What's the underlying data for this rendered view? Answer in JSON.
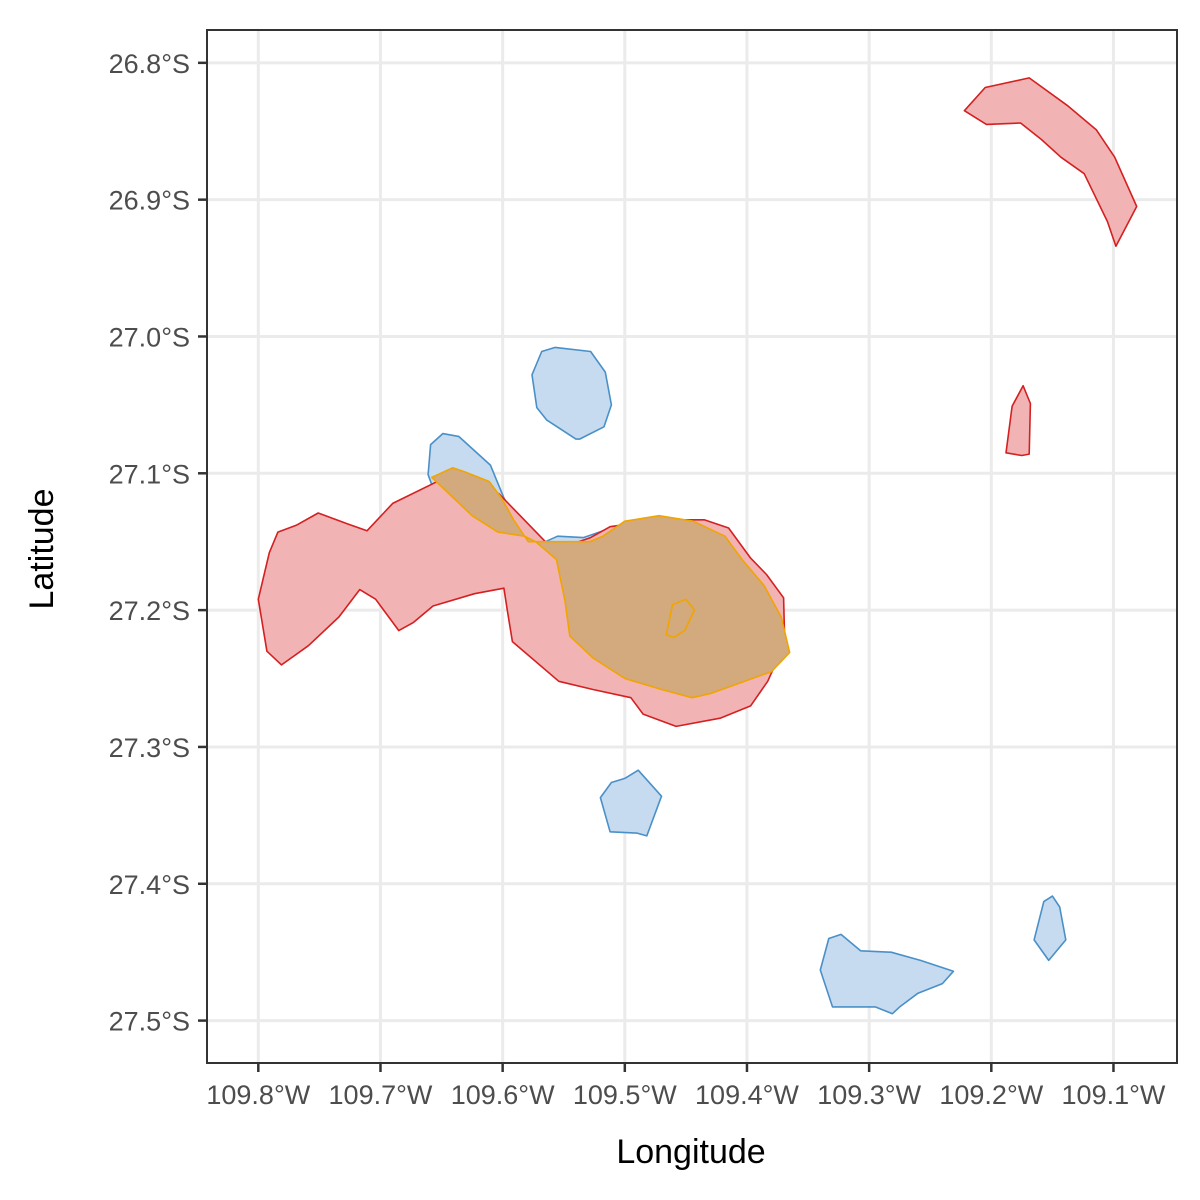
{
  "chart_data": {
    "type": "area",
    "xlabel": "Longitude",
    "ylabel": "Latitude",
    "xlim": [
      -109.842,
      -109.048
    ],
    "ylim": [
      -27.531,
      -26.776
    ],
    "grid": true,
    "legend": "none",
    "x_ticks": [
      {
        "value": -109.8,
        "label": "109.8°W"
      },
      {
        "value": -109.7,
        "label": "109.7°W"
      },
      {
        "value": -109.6,
        "label": "109.6°W"
      },
      {
        "value": -109.5,
        "label": "109.5°W"
      },
      {
        "value": -109.4,
        "label": "109.4°W"
      },
      {
        "value": -109.3,
        "label": "109.3°W"
      },
      {
        "value": -109.2,
        "label": "109.2°W"
      },
      {
        "value": -109.1,
        "label": "109.1°W"
      }
    ],
    "y_ticks": [
      {
        "value": -26.8,
        "label": "26.8°S"
      },
      {
        "value": -26.9,
        "label": "26.9°S"
      },
      {
        "value": -27.0,
        "label": "27.0°S"
      },
      {
        "value": -27.1,
        "label": "27.1°S"
      },
      {
        "value": -27.2,
        "label": "27.2°S"
      },
      {
        "value": -27.3,
        "label": "27.3°S"
      },
      {
        "value": -27.4,
        "label": "27.4°S"
      },
      {
        "value": -27.5,
        "label": "27.5°S"
      }
    ],
    "series": [
      {
        "fill": "#c6dbef",
        "stroke": "#4a90c8",
        "polygons": [
          [
            [
              -109.524,
              -27.157
            ],
            [
              -109.581,
              -27.148
            ],
            [
              -109.599,
              -27.118
            ],
            [
              -109.61,
              -27.094
            ],
            [
              -109.636,
              -27.073
            ],
            [
              -109.649,
              -27.071
            ],
            [
              -109.659,
              -27.079
            ],
            [
              -109.661,
              -27.101
            ],
            [
              -109.645,
              -27.14
            ],
            [
              -109.605,
              -27.142
            ],
            [
              -109.573,
              -27.148
            ],
            [
              -109.565,
              -27.15
            ],
            [
              -109.555,
              -27.146
            ],
            [
              -109.534,
              -27.147
            ],
            [
              -109.508,
              -27.139
            ],
            [
              -109.497,
              -27.153
            ],
            [
              -109.478,
              -27.15
            ]
          ],
          [
            [
              -109.537,
              -27.075
            ],
            [
              -109.517,
              -27.066
            ],
            [
              -109.511,
              -27.05
            ],
            [
              -109.516,
              -27.026
            ],
            [
              -109.528,
              -27.011
            ],
            [
              -109.557,
              -27.008
            ],
            [
              -109.568,
              -27.011
            ],
            [
              -109.576,
              -27.028
            ],
            [
              -109.572,
              -27.052
            ],
            [
              -109.564,
              -27.061
            ],
            [
              -109.54,
              -27.075
            ]
          ],
          [
            [
              -109.49,
              -27.363
            ],
            [
              -109.512,
              -27.362
            ],
            [
              -109.52,
              -27.337
            ],
            [
              -109.511,
              -27.326
            ],
            [
              -109.5,
              -27.323
            ],
            [
              -109.489,
              -27.317
            ],
            [
              -109.47,
              -27.336
            ],
            [
              -109.482,
              -27.365
            ]
          ],
          [
            [
              -109.33,
              -27.49
            ],
            [
              -109.34,
              -27.463
            ],
            [
              -109.333,
              -27.44
            ],
            [
              -109.323,
              -27.437
            ],
            [
              -109.307,
              -27.449
            ],
            [
              -109.282,
              -27.45
            ],
            [
              -109.258,
              -27.456
            ],
            [
              -109.231,
              -27.464
            ],
            [
              -109.24,
              -27.473
            ],
            [
              -109.26,
              -27.48
            ],
            [
              -109.275,
              -27.49
            ],
            [
              -109.281,
              -27.495
            ],
            [
              -109.295,
              -27.49
            ]
          ],
          [
            [
              -109.165,
              -27.441
            ],
            [
              -109.157,
              -27.413
            ],
            [
              -109.15,
              -27.409
            ],
            [
              -109.144,
              -27.417
            ],
            [
              -109.139,
              -27.441
            ],
            [
              -109.153,
              -27.456
            ]
          ],
          [
            [
              -109.466,
              -27.216
            ],
            [
              -109.448,
              -27.208
            ],
            [
              -109.437,
              -27.206
            ],
            [
              -109.43,
              -27.203
            ],
            [
              -109.442,
              -27.197
            ],
            [
              -109.456,
              -27.196
            ],
            [
              -109.471,
              -27.205
            ]
          ]
        ]
      },
      {
        "fill": "#f2b3b5",
        "stroke": "#d42020",
        "polygons": [
          [
            [
              -109.8,
              -27.192
            ],
            [
              -109.791,
              -27.158
            ],
            [
              -109.784,
              -27.143
            ],
            [
              -109.769,
              -27.138
            ],
            [
              -109.751,
              -27.129
            ],
            [
              -109.727,
              -27.137
            ],
            [
              -109.711,
              -27.142
            ],
            [
              -109.69,
              -27.122
            ],
            [
              -109.649,
              -27.104
            ],
            [
              -109.636,
              -27.099
            ],
            [
              -109.603,
              -27.115
            ],
            [
              -109.565,
              -27.15
            ],
            [
              -109.554,
              -27.155
            ],
            [
              -109.528,
              -27.147
            ],
            [
              -109.512,
              -27.139
            ],
            [
              -109.472,
              -27.134
            ],
            [
              -109.435,
              -27.134
            ],
            [
              -109.415,
              -27.14
            ],
            [
              -109.397,
              -27.162
            ],
            [
              -109.384,
              -27.174
            ],
            [
              -109.37,
              -27.191
            ],
            [
              -109.369,
              -27.226
            ],
            [
              -109.377,
              -27.24
            ],
            [
              -109.383,
              -27.252
            ],
            [
              -109.397,
              -27.27
            ],
            [
              -109.422,
              -27.279
            ],
            [
              -109.458,
              -27.285
            ],
            [
              -109.485,
              -27.276
            ],
            [
              -109.495,
              -27.264
            ],
            [
              -109.526,
              -27.258
            ],
            [
              -109.554,
              -27.252
            ],
            [
              -109.592,
              -27.223
            ],
            [
              -109.596,
              -27.201
            ],
            [
              -109.599,
              -27.184
            ],
            [
              -109.623,
              -27.188
            ],
            [
              -109.657,
              -27.197
            ],
            [
              -109.673,
              -27.209
            ],
            [
              -109.685,
              -27.215
            ],
            [
              -109.704,
              -27.192
            ],
            [
              -109.717,
              -27.185
            ],
            [
              -109.734,
              -27.205
            ],
            [
              -109.759,
              -27.226
            ],
            [
              -109.781,
              -27.24
            ],
            [
              -109.793,
              -27.23
            ]
          ],
          [
            [
              -109.222,
              -26.835
            ],
            [
              -109.205,
              -26.818
            ],
            [
              -109.169,
              -26.811
            ],
            [
              -109.138,
              -26.831
            ],
            [
              -109.114,
              -26.849
            ],
            [
              -109.099,
              -26.869
            ],
            [
              -109.081,
              -26.905
            ],
            [
              -109.098,
              -26.934
            ],
            [
              -109.105,
              -26.916
            ],
            [
              -109.124,
              -26.881
            ],
            [
              -109.143,
              -26.869
            ],
            [
              -109.159,
              -26.856
            ],
            [
              -109.176,
              -26.844
            ],
            [
              -109.204,
              -26.845
            ]
          ],
          [
            [
              -109.188,
              -27.085
            ],
            [
              -109.183,
              -27.051
            ],
            [
              -109.174,
              -27.036
            ],
            [
              -109.168,
              -27.049
            ],
            [
              -109.169,
              -27.086
            ],
            [
              -109.175,
              -27.087
            ]
          ],
          [
            [
              -109.474,
              -27.2
            ],
            [
              -109.464,
              -27.186
            ],
            [
              -109.453,
              -27.193
            ],
            [
              -109.458,
              -27.22
            ],
            [
              -109.462,
              -27.227
            ]
          ]
        ]
      },
      {
        "fill": "#d3a97e",
        "stroke": "#f0a500",
        "polygons": [
          [
            [
              -109.658,
              -27.103
            ],
            [
              -109.641,
              -27.096
            ],
            [
              -109.631,
              -27.099
            ],
            [
              -109.611,
              -27.106
            ],
            [
              -109.601,
              -27.118
            ],
            [
              -109.591,
              -27.134
            ],
            [
              -109.579,
              -27.15
            ],
            [
              -109.557,
              -27.15
            ],
            [
              -109.529,
              -27.15
            ],
            [
              -109.518,
              -27.146
            ],
            [
              -109.5,
              -27.135
            ],
            [
              -109.472,
              -27.131
            ],
            [
              -109.444,
              -27.135
            ],
            [
              -109.418,
              -27.146
            ],
            [
              -109.404,
              -27.163
            ],
            [
              -109.386,
              -27.182
            ],
            [
              -109.372,
              -27.205
            ],
            [
              -109.365,
              -27.231
            ],
            [
              -109.38,
              -27.245
            ],
            [
              -109.405,
              -27.253
            ],
            [
              -109.43,
              -27.261
            ],
            [
              -109.445,
              -27.264
            ],
            [
              -109.47,
              -27.258
            ],
            [
              -109.5,
              -27.25
            ],
            [
              -109.526,
              -27.235
            ],
            [
              -109.545,
              -27.219
            ],
            [
              -109.549,
              -27.193
            ],
            [
              -109.556,
              -27.163
            ],
            [
              -109.573,
              -27.15
            ],
            [
              -109.582,
              -27.146
            ],
            [
              -109.604,
              -27.143
            ],
            [
              -109.625,
              -27.131
            ],
            [
              -109.645,
              -27.114
            ]
          ],
          [
            [
              -109.466,
              -27.218
            ],
            [
              -109.461,
              -27.196
            ],
            [
              -109.45,
              -27.192
            ],
            [
              -109.443,
              -27.2
            ],
            [
              -109.451,
              -27.215
            ],
            [
              -109.46,
              -27.22
            ]
          ]
        ]
      }
    ]
  }
}
